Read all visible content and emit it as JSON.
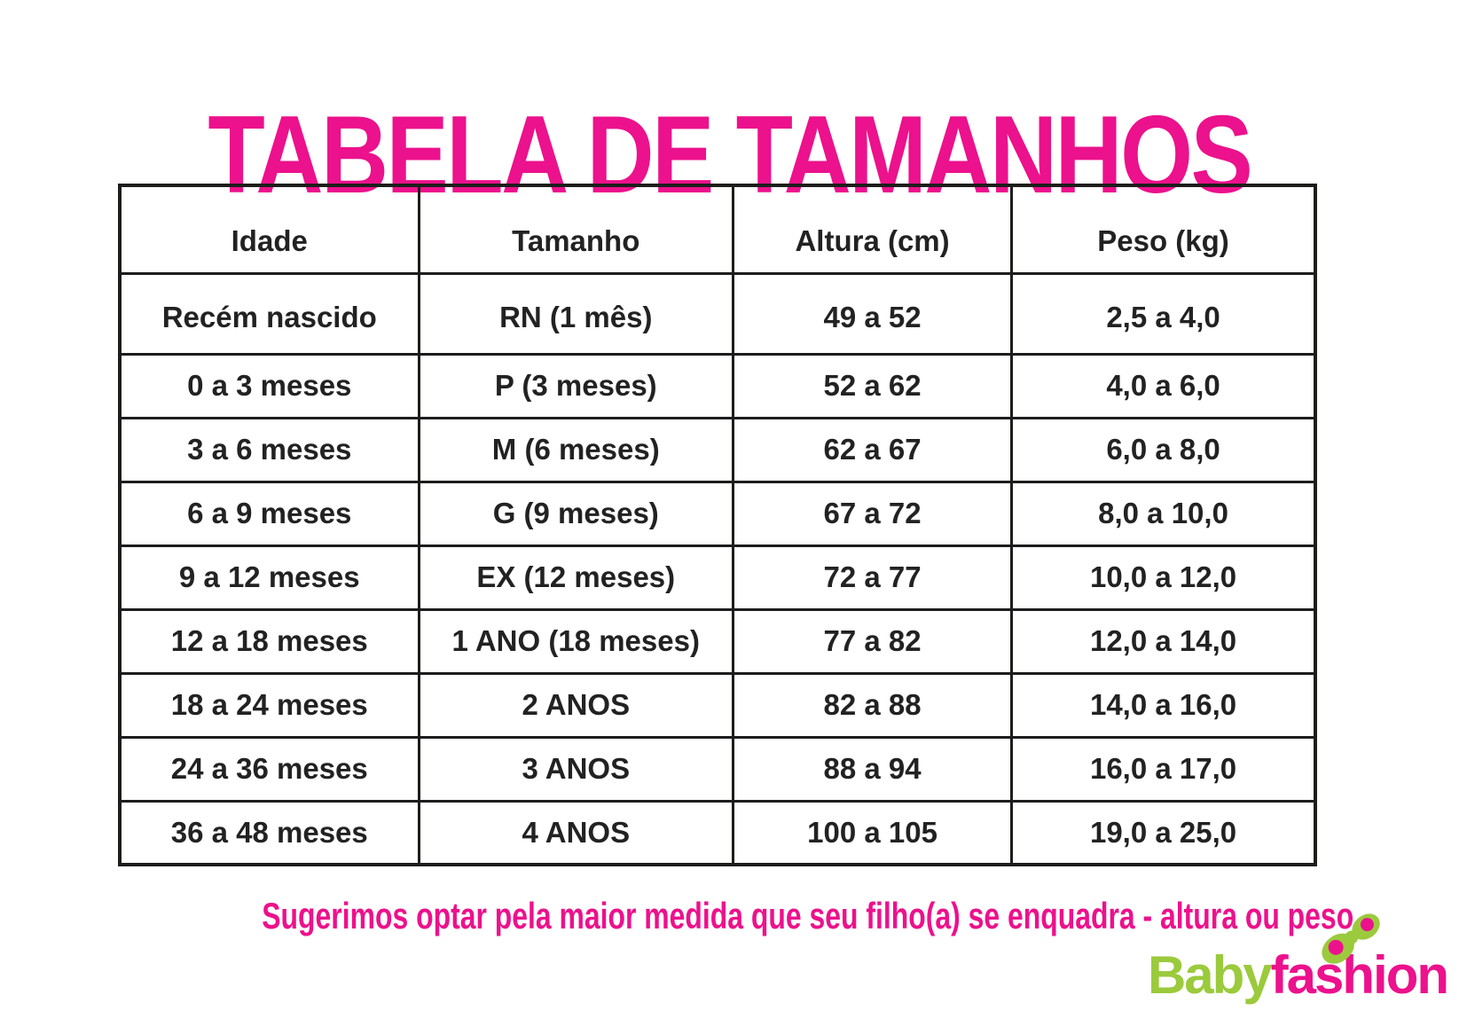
{
  "page": {
    "title": "TABELA DE TAMANHOS",
    "note": "Sugerimos optar pela maior medida que seu filho(a) se enquadra - altura ou peso."
  },
  "colors": {
    "pink": "#EC118C",
    "green": "#9BCA3C",
    "table_text": "#232222",
    "table_border": "#1D1D1B",
    "background": "#FFFFFF"
  },
  "table": {
    "headers": [
      "Idade",
      "Tamanho",
      "Altura (cm)",
      "Peso (kg)"
    ],
    "rows": [
      [
        "Recém nascido",
        "RN (1 mês)",
        "49 a 52",
        "2,5 a 4,0"
      ],
      [
        "0 a 3 meses",
        "P (3 meses)",
        "52 a 62",
        "4,0 a 6,0"
      ],
      [
        "3 a 6 meses",
        "M (6 meses)",
        "62 a 67",
        "6,0 a 8,0"
      ],
      [
        "6 a 9 meses",
        "G (9 meses)",
        "67 a 72",
        "8,0 a 10,0"
      ],
      [
        "9 a 12 meses",
        "EX (12 meses)",
        "72 a 77",
        "10,0 a 12,0"
      ],
      [
        "12 a 18 meses",
        "1 ANO (18 meses)",
        "77 a 82",
        "12,0 a 14,0"
      ],
      [
        "18 a 24 meses",
        "2 ANOS",
        "82 a 88",
        "14,0 a 16,0"
      ],
      [
        "24 a 36 meses",
        "3 ANOS",
        "88 a 94",
        "16,0 a 17,0"
      ],
      [
        "36 a 48 meses",
        "4 ANOS",
        "100 a 105",
        "19,0 a 25,0"
      ]
    ]
  },
  "logo": {
    "part1": "Baby",
    "part2": "fashion",
    "icon": "butterfly-bow"
  }
}
